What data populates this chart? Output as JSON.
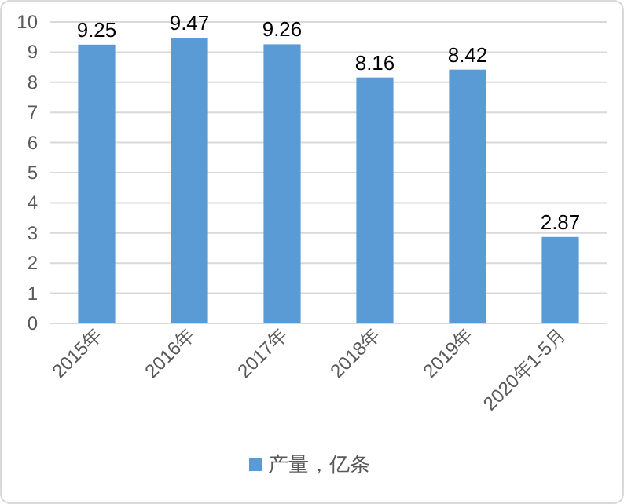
{
  "chart_data": {
    "type": "bar",
    "categories": [
      "2015年",
      "2016年",
      "2017年",
      "2018年",
      "2019年",
      "2020年1-5月"
    ],
    "series": [
      {
        "name": "产量，亿条",
        "color": "#5b9bd5",
        "values": [
          9.25,
          9.47,
          9.26,
          8.16,
          8.42,
          2.87
        ]
      }
    ],
    "ylim": [
      0,
      10
    ],
    "yticks": [
      0,
      1,
      2,
      3,
      4,
      5,
      6,
      7,
      8,
      9,
      10
    ],
    "grid": "y",
    "data_labels": true,
    "legend": "bottom"
  }
}
